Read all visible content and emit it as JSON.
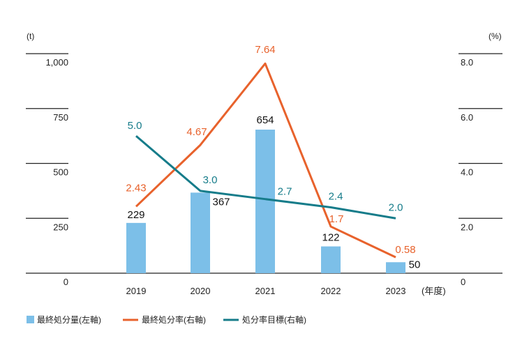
{
  "colors": {
    "bar": "#7cbfe8",
    "disposal_rate": "#e8622c",
    "target": "#167c8a",
    "axis": "#222222"
  },
  "chart_data": {
    "type": "bar",
    "categories": [
      "2019",
      "2020",
      "2021",
      "2022",
      "2023"
    ],
    "x_unit": "(年度)",
    "left_axis": {
      "unit": "(t)",
      "range": [
        0,
        1000
      ],
      "ticks": [
        "0",
        "250",
        "500",
        "750",
        "1,000"
      ]
    },
    "right_axis": {
      "unit": "(%)",
      "range": [
        0,
        8
      ],
      "ticks": [
        "0",
        "2.0",
        "4.0",
        "6.0",
        "8.0"
      ]
    },
    "series": [
      {
        "name": "最終処分量(左軸)",
        "type": "bar",
        "axis": "left",
        "values": [
          229,
          367,
          654,
          122,
          50
        ],
        "labels": [
          "229",
          "367",
          "654",
          "122",
          "50"
        ],
        "color": "#7cbfe8"
      },
      {
        "name": "最終処分率(右軸)",
        "type": "line",
        "axis": "right",
        "values": [
          2.43,
          4.67,
          7.64,
          1.7,
          0.58
        ],
        "labels": [
          "2.43",
          "4.67",
          "7.64",
          "1.7",
          "0.58"
        ],
        "color": "#e8622c"
      },
      {
        "name": "処分率目標(右軸)",
        "type": "line",
        "axis": "right",
        "values": [
          5.0,
          3.0,
          2.7,
          2.4,
          2.0
        ],
        "labels": [
          "5.0",
          "3.0",
          "2.7",
          "2.4",
          "2.0"
        ],
        "color": "#167c8a"
      }
    ],
    "grid": false,
    "legend_position": "bottom-left"
  }
}
